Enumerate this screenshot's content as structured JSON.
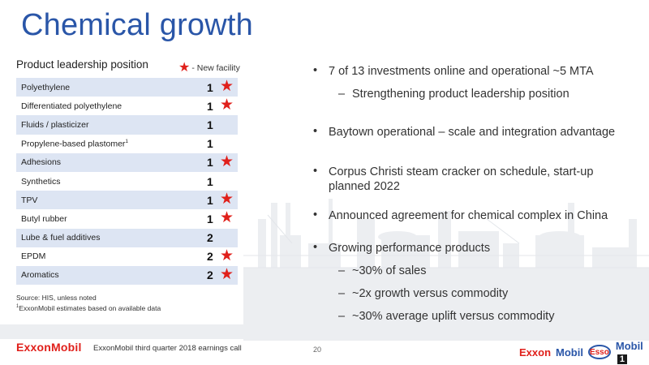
{
  "slide": {
    "title": "Chemical growth",
    "table_heading": "Product leadership position",
    "legend_label": "- New facility",
    "products": [
      {
        "name": "Polyethylene",
        "rank": "1",
        "new_facility": true
      },
      {
        "name": "Differentiated polyethylene",
        "rank": "1",
        "new_facility": true
      },
      {
        "name": "Fluids / plasticizer",
        "rank": "1",
        "new_facility": false
      },
      {
        "name": "Propylene-based plastomer",
        "rank": "1",
        "new_facility": false,
        "footnote": "1"
      },
      {
        "name": "Adhesions",
        "rank": "1",
        "new_facility": true
      },
      {
        "name": "Synthetics",
        "rank": "1",
        "new_facility": false
      },
      {
        "name": "TPV",
        "rank": "1",
        "new_facility": true
      },
      {
        "name": "Butyl rubber",
        "rank": "1",
        "new_facility": true
      },
      {
        "name": "Lube & fuel additives",
        "rank": "2",
        "new_facility": false
      },
      {
        "name": "EPDM",
        "rank": "2",
        "new_facility": true
      },
      {
        "name": "Aromatics",
        "rank": "2",
        "new_facility": true
      }
    ],
    "notes": {
      "source": "Source: HIS, unless noted",
      "footnote_mark": "1",
      "footnote": "ExxonMobil estimates based on available data"
    },
    "bullets": {
      "b1": "7 of 13 investments online and operational ~5 MTA",
      "b1_sub": "Strengthening product leadership position",
      "b2": "Baytown operational – scale and integration advantage",
      "b3_line1": "Corpus Christi steam cracker on schedule, start-up",
      "b3_line2": "planned 2022",
      "b4": "Announced agreement for chemical complex in China",
      "b5": "Growing performance products",
      "b5_subs": [
        "~30% of sales",
        "~2x growth versus commodity",
        "~30% average uplift versus commodity"
      ]
    },
    "footer": {
      "logo": "ExxonMobil",
      "text": "ExxonMobil third quarter 2018 earnings call",
      "page": "20",
      "brand_exxon": "Exxon",
      "brand_mobil": "Mobil",
      "brand_esso": "Esso",
      "brand_mobil1": "Mobil",
      "brand_mobil1_num": "1"
    },
    "colors": {
      "title": "#2a56a8",
      "star": "#e0201b",
      "row_shade": "#dde5f3"
    }
  }
}
